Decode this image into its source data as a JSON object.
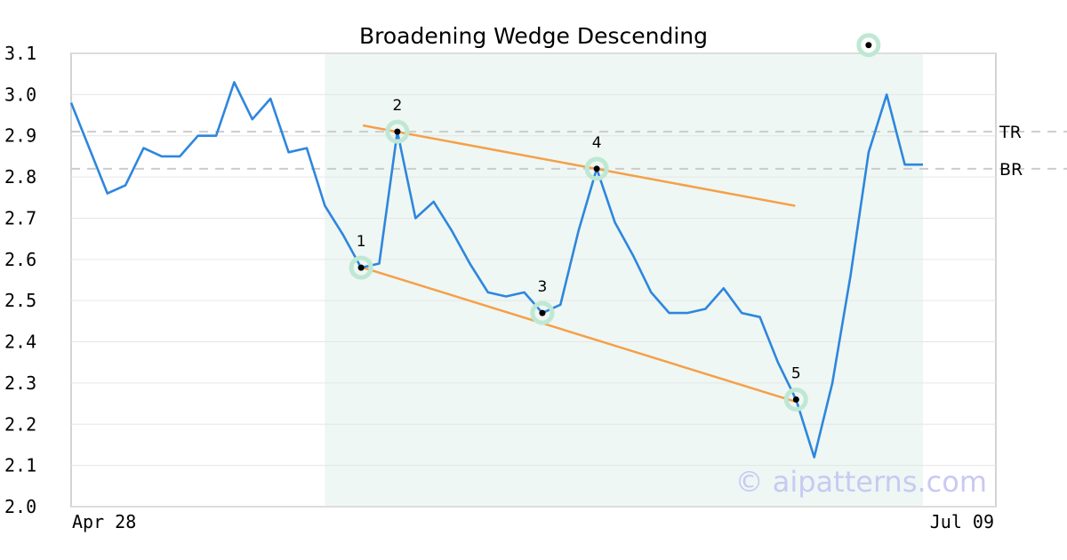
{
  "chart_data": {
    "type": "line",
    "title": "Broadening Wedge Descending",
    "xlabel": "",
    "ylabel": "",
    "x_tick_labels": [
      "Apr 28",
      "Jul 09"
    ],
    "ylim": [
      2.0,
      3.1
    ],
    "y_ticks": [
      "2.0",
      "2.1",
      "2.2",
      "2.3",
      "2.4",
      "2.5",
      "2.6",
      "2.7",
      "2.8",
      "2.9",
      "3.0",
      "3.1"
    ],
    "grid": true,
    "series": [
      {
        "values": [
          2.98,
          2.87,
          2.76,
          2.78,
          2.87,
          2.85,
          2.85,
          2.9,
          2.9,
          3.03,
          2.94,
          2.99,
          2.86,
          2.87,
          2.73,
          2.66,
          2.58,
          2.59,
          2.91,
          2.7,
          2.74,
          2.67,
          2.59,
          2.52,
          2.51,
          2.52,
          2.47,
          2.49,
          2.67,
          2.82,
          2.69,
          2.61,
          2.52,
          2.47,
          2.47,
          2.48,
          2.53,
          2.47,
          2.46,
          2.35,
          2.26,
          2.12,
          2.3,
          2.56,
          2.86,
          3.0,
          2.83,
          2.83
        ],
        "color": "#2e86de"
      }
    ],
    "pattern_region": {
      "start_index": 14,
      "end_index": 47,
      "color": "#eef7f3"
    },
    "trendlines": [
      {
        "start_index": 16,
        "start_value": 2.925,
        "end_index": 40,
        "end_value": 2.73,
        "color": "#f5a049"
      },
      {
        "start_index": 16,
        "start_value": 2.58,
        "end_index": 40,
        "end_value": 2.255,
        "color": "#f5a049"
      }
    ],
    "pivots": [
      {
        "label": "1",
        "index": 16,
        "value": 2.58
      },
      {
        "label": "2",
        "index": 18,
        "value": 2.91
      },
      {
        "label": "3",
        "index": 26,
        "value": 2.47
      },
      {
        "label": "4",
        "index": 29,
        "value": 2.82
      },
      {
        "label": "5",
        "index": 40,
        "value": 2.26
      }
    ],
    "breakout_marker": {
      "index": 44,
      "value": 3.12
    },
    "levels": [
      {
        "label": "TR",
        "value": 2.91
      },
      {
        "label": "BR",
        "value": 2.82
      }
    ]
  },
  "watermark": "© aipatterns.com",
  "colors": {
    "line": "#2e86de",
    "trend": "#f5a049",
    "marker_halo": "#bfe8d4",
    "grid": "#e6e6e6",
    "axis": "#d4d4d4",
    "level": "#cccccc"
  }
}
